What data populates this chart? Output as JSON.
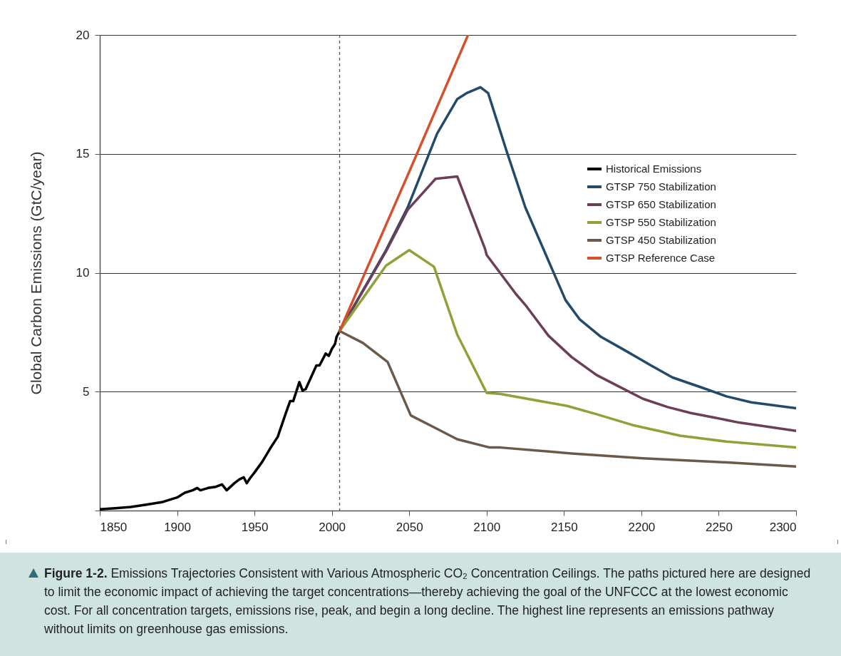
{
  "chart_data": {
    "type": "line",
    "ylabel": "Global Carbon Emissions (GtC/year)",
    "xlim": [
      1850,
      2300
    ],
    "xticks": [
      1850,
      1900,
      1950,
      2000,
      2050,
      2100,
      2150,
      2200,
      2250,
      2300
    ],
    "ylim": [
      0,
      20
    ],
    "yticks": [
      {
        "value": 0,
        "label": null
      },
      5,
      10,
      15,
      20
    ],
    "grid": "y",
    "legend": "top right",
    "line_style": "solid",
    "marker": "none",
    "ref_lines": [
      {
        "axis": "x",
        "value": 2005,
        "color": "#555555",
        "line_style": "dashed"
      }
    ],
    "series": [
      {
        "name": "Historical Emissions",
        "color": "#000000",
        "x": [
          1850,
          1860,
          1870,
          1880,
          1890,
          1900,
          1905,
          1910,
          1913,
          1915,
          1920,
          1925,
          1929,
          1932,
          1937,
          1940,
          1943,
          1945,
          1947,
          1950,
          1955,
          1960,
          1965,
          1970,
          1973,
          1975,
          1979,
          1981,
          1983,
          1990,
          1992,
          1996,
          1998,
          2000,
          2002,
          2003,
          2005
        ],
        "values": [
          0.05,
          0.1,
          0.15,
          0.25,
          0.35,
          0.55,
          0.75,
          0.85,
          0.95,
          0.85,
          0.95,
          1.0,
          1.1,
          0.85,
          1.15,
          1.3,
          1.4,
          1.15,
          1.35,
          1.6,
          2.05,
          2.6,
          3.1,
          4.05,
          4.6,
          4.6,
          5.4,
          5.05,
          5.1,
          6.1,
          6.1,
          6.6,
          6.5,
          6.8,
          7.0,
          7.3,
          7.55
        ]
      },
      {
        "name": "GTSP 750 Stabilization",
        "color": "#234a68",
        "x": [
          2005,
          2035,
          2049,
          2068,
          2081,
          2087,
          2096,
          2101,
          2113,
          2125,
          2143,
          2151,
          2160,
          2174,
          2189,
          2205,
          2220,
          2240,
          2255,
          2271,
          2300
        ],
        "values": [
          7.55,
          10.95,
          12.75,
          15.85,
          17.3,
          17.55,
          17.8,
          17.55,
          15.1,
          12.75,
          10.05,
          8.85,
          8.05,
          7.3,
          6.75,
          6.15,
          5.6,
          5.15,
          4.8,
          4.55,
          4.3
        ]
      },
      {
        "name": "GTSP 650 Stabilization",
        "color": "#6b3f57",
        "x": [
          2005,
          2035,
          2049,
          2067,
          2081,
          2099,
          2100,
          2119,
          2125,
          2140,
          2155,
          2171,
          2186,
          2201,
          2217,
          2232,
          2248,
          2263,
          2300
        ],
        "values": [
          7.55,
          10.9,
          12.65,
          13.95,
          14.05,
          11.0,
          10.75,
          9.1,
          8.65,
          7.35,
          6.45,
          5.7,
          5.2,
          4.7,
          4.35,
          4.1,
          3.9,
          3.7,
          3.35
        ]
      },
      {
        "name": "GTSP 550 Stabilization",
        "color": "#8fa23a",
        "x": [
          2005,
          2035,
          2050,
          2066,
          2081,
          2100,
          2109,
          2152,
          2171,
          2194,
          2225,
          2255,
          2300
        ],
        "values": [
          7.55,
          10.3,
          10.95,
          10.25,
          7.4,
          4.95,
          4.9,
          4.4,
          4.05,
          3.6,
          3.15,
          2.9,
          2.65
        ]
      },
      {
        "name": "GTSP 450 Stabilization",
        "color": "#6b5a4a",
        "x": [
          2005,
          2020,
          2036,
          2051,
          2066,
          2081,
          2102,
          2109,
          2155,
          2201,
          2248,
          2300
        ],
        "values": [
          7.55,
          7.05,
          6.25,
          4.0,
          3.5,
          3.0,
          2.65,
          2.65,
          2.4,
          2.2,
          2.05,
          1.85
        ]
      },
      {
        "name": "GTSP Reference Case",
        "color": "#d4522e",
        "x": [
          2005,
          2050,
          2088
        ],
        "values": [
          7.55,
          14.25,
          20.0
        ]
      }
    ],
    "annotations": [
      "Figure 1-2.",
      "Emissions Trajectories Consistent with Various Atmospheric CO₂ Concentration Ceilings. The paths pictured here are designed to limit the economic impact of achieving the target concentrations—thereby achieving the goal of the UNFCCC at the lowest economic cost. For all concentration targets, emissions rise, peak, and begin a long decline. The highest line represents an emissions pathway without limits on greenhouse gas emissions."
    ]
  }
}
